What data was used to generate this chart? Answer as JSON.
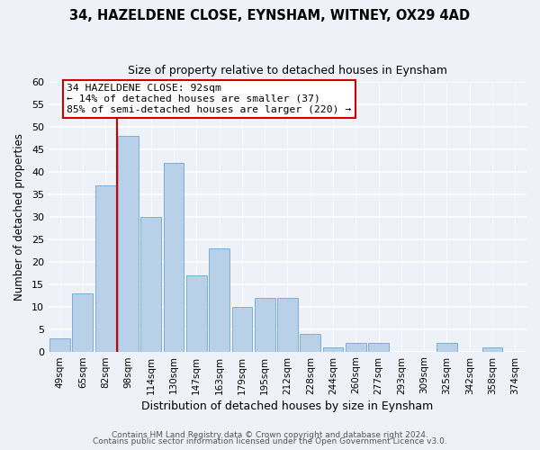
{
  "title1": "34, HAZELDENE CLOSE, EYNSHAM, WITNEY, OX29 4AD",
  "title2": "Size of property relative to detached houses in Eynsham",
  "xlabel": "Distribution of detached houses by size in Eynsham",
  "ylabel": "Number of detached properties",
  "categories": [
    "49sqm",
    "65sqm",
    "82sqm",
    "98sqm",
    "114sqm",
    "130sqm",
    "147sqm",
    "163sqm",
    "179sqm",
    "195sqm",
    "212sqm",
    "228sqm",
    "244sqm",
    "260sqm",
    "277sqm",
    "293sqm",
    "309sqm",
    "325sqm",
    "342sqm",
    "358sqm",
    "374sqm"
  ],
  "values": [
    3,
    13,
    37,
    48,
    30,
    42,
    17,
    23,
    10,
    12,
    12,
    4,
    1,
    2,
    2,
    0,
    0,
    2,
    0,
    1,
    0
  ],
  "bar_color": "#b8d0e8",
  "bar_edge_color": "#7aafd4",
  "vline_color": "#cc0000",
  "annotation_title": "34 HAZELDENE CLOSE: 92sqm",
  "annotation_line1": "← 14% of detached houses are smaller (37)",
  "annotation_line2": "85% of semi-detached houses are larger (220) →",
  "annotation_box_edge": "#cc0000",
  "annotation_box_face": "#ffffff",
  "ylim": [
    0,
    60
  ],
  "yticks": [
    0,
    5,
    10,
    15,
    20,
    25,
    30,
    35,
    40,
    45,
    50,
    55,
    60
  ],
  "footer1": "Contains HM Land Registry data © Crown copyright and database right 2024.",
  "footer2": "Contains public sector information licensed under the Open Government Licence v3.0.",
  "bg_color": "#eef2f8"
}
